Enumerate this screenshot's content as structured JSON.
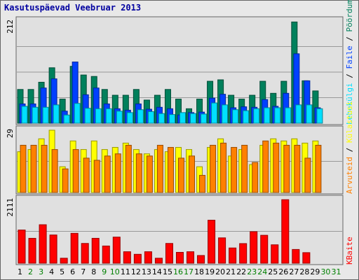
{
  "colors": {
    "hits": "#00805c",
    "files": "#0040ff",
    "pages": "#00e0ff",
    "visits": "#ffff00",
    "sites": "#ff8000",
    "kbytes": "#ff0000",
    "weekend": "#008000",
    "weekday": "#000000",
    "title": "#0000a0"
  },
  "chart_data": {
    "type": "bar",
    "title": "Kasutuspäevad Veebruar 2013",
    "days": [
      "1",
      "2",
      "3",
      "4",
      "5",
      "6",
      "7",
      "8",
      "9",
      "10",
      "11",
      "12",
      "13",
      "14",
      "15",
      "16",
      "17",
      "18",
      "19",
      "20",
      "21",
      "22",
      "23",
      "24",
      "25",
      "26",
      "27",
      "28",
      "29",
      "30",
      "31"
    ],
    "weekend_days": [
      "2",
      "3",
      "9",
      "10",
      "16",
      "17",
      "23",
      "24",
      "30",
      "31"
    ],
    "panels": [
      {
        "id": "top",
        "ymax_label": "212",
        "ymax": 212,
        "legend": [
          "Pöördumisi",
          "Faile",
          "Lehekülgi"
        ],
        "series": [
          {
            "name": "Pöördumisi",
            "color_key": "hits",
            "values": [
              70,
              70,
              85,
              115,
              50,
              118,
              100,
              97,
              70,
              58,
              58,
              70,
              48,
              58,
              70,
              50,
              30,
              50,
              87,
              90,
              58,
              50,
              58,
              87,
              62,
              87,
              210,
              88,
              67,
              null,
              null
            ]
          },
          {
            "name": "Faile",
            "color_key": "files",
            "values": [
              40,
              40,
              73,
              92,
              25,
              127,
              59,
              73,
              40,
              30,
              27,
              40,
              29,
              33,
              30,
              17,
              22,
              23,
              52,
              60,
              32,
              34,
              33,
              49,
              35,
              62,
              144,
              88,
              32,
              null,
              null
            ]
          },
          {
            "name": "Lehekülgi",
            "color_key": "pages",
            "values": [
              35,
              33,
              33,
              38,
              17,
              41,
              31,
              30,
              30,
              25,
              22,
              28,
              24,
              20,
              18,
              22,
              20,
              19,
              42,
              38,
              28,
              26,
              30,
              32,
              32,
              32,
              38,
              38,
              30,
              null,
              null
            ]
          }
        ]
      },
      {
        "id": "middle",
        "ymax_label": "29",
        "ymax": 29,
        "legend": [
          "Külastusi",
          "Arvuteid"
        ],
        "series": [
          {
            "name": "Külastusi",
            "color_key": "visits",
            "values": [
              19,
              20,
              25,
              29,
              12,
              24,
              20,
              24,
              20,
              21,
              23,
              20,
              18,
              20,
              19,
              21,
              20,
              12,
              21,
              25,
              17,
              20,
              13,
              22,
              25,
              24,
              25,
              23,
              24,
              null,
              null
            ]
          },
          {
            "name": "Arvuteid",
            "color_key": "sites",
            "values": [
              22,
              22,
              22,
              20,
              11,
              20,
              16,
              15,
              17,
              18,
              22,
              18,
              17,
              22,
              21,
              16,
              17,
              8,
              22,
              23,
              21,
              22,
              14,
              24,
              23,
              22,
              22,
              16,
              22,
              null,
              null
            ]
          }
        ]
      },
      {
        "id": "bottom",
        "ymax_label": "2111",
        "ymax": 2111,
        "legend": [
          "KBaite"
        ],
        "series": [
          {
            "name": "KBaite",
            "color_key": "kbytes",
            "values": [
              1100,
              825,
              1275,
              935,
              165,
              990,
              655,
              825,
              570,
              865,
              380,
              295,
              380,
              165,
              655,
              360,
              380,
              255,
              1425,
              840,
              505,
              650,
              1045,
              925,
              610,
              2105,
              455,
              350,
              null,
              null,
              null
            ]
          }
        ]
      }
    ]
  }
}
